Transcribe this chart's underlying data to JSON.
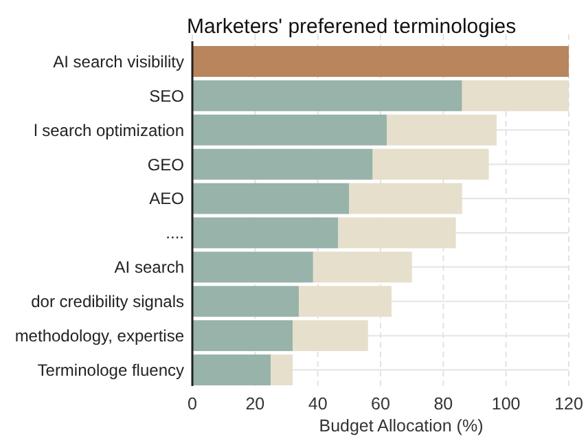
{
  "chart_data": {
    "type": "bar",
    "orientation": "horizontal",
    "stacked": true,
    "title": "Marketers' preferened terminologies",
    "xlabel": "Budget Allocation (%)",
    "categories": [
      "AI search visibility",
      "SEO",
      "l search optimization",
      "GEO",
      "AEO",
      "....",
      "AI search",
      "dor credibility signals",
      "methodology, expertise",
      "Terminologe fluency"
    ],
    "series": [
      {
        "color": "#98b3a9",
        "colors": [
          "#b9855c",
          "#98b3a9",
          "#98b3a9",
          "#98b3a9",
          "#98b3a9",
          "#98b3a9",
          "#98b3a9",
          "#98b3a9",
          "#98b3a9",
          "#98b3a9"
        ],
        "values": [
          120,
          86,
          62,
          57.5,
          50,
          46.5,
          38.5,
          34,
          32,
          25
        ]
      },
      {
        "color": "#e6dfcc",
        "values": [
          null,
          34,
          35,
          37,
          36,
          37.5,
          31.5,
          29.5,
          24,
          7
        ]
      }
    ],
    "xlim": [
      0,
      120
    ],
    "xticks": [
      0,
      20,
      40,
      60,
      80,
      100,
      120
    ],
    "grid": true
  }
}
